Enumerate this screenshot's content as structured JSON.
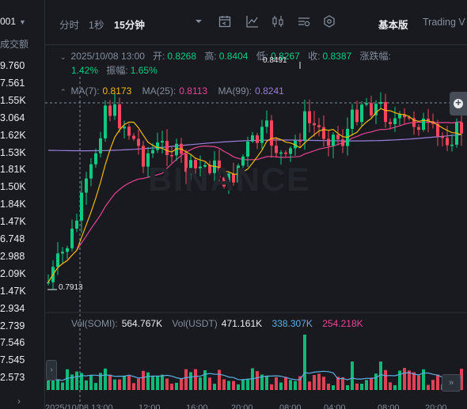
{
  "left_panel": {
    "header": "001",
    "subheader": "成交额",
    "values": [
      "9.760",
      "7.561",
      "1.55K",
      "3.064",
      "1.62K",
      "1.53K",
      "1.81K",
      "1.50K",
      "1.84K",
      "1.47K",
      "6.748",
      "2.988",
      "2.09K",
      "1.47K",
      "2.934",
      "2.739",
      "7.546",
      "7.545",
      "2.573"
    ]
  },
  "toolbar": {
    "time_label": "分时",
    "interval_1s": "1秒",
    "interval_15m": "15分钟",
    "basic_label": "基本版",
    "tradingview_label": "Trading V"
  },
  "ohlc": {
    "datetime": "2025/10/08 13:00",
    "open_label": "开:",
    "open": "0.8268",
    "high_label": "高:",
    "high": "0.8404",
    "low_label": "低:",
    "low": "0.8267",
    "close_label": "收:",
    "close": "0.8387",
    "change_label": "涨跌幅:",
    "change": "1.42%",
    "amplitude_label": "振幅:",
    "amplitude": "1.65%"
  },
  "ma": {
    "ma7_label": "MA(7):",
    "ma7": "0.8173",
    "ma25_label": "MA(25):",
    "ma25": "0.8113",
    "ma99_label": "MA(99):",
    "ma99": "0.8241"
  },
  "volume": {
    "label": "Vol(SOMI):",
    "somi": "564.767K",
    "usdt_label": "Vol(USDT)",
    "usdt": "471.161K",
    "ma_a": "338.307K",
    "ma_b": "254.218K"
  },
  "annotations": {
    "high_mark": "0.8491",
    "low_mark": "0.7913"
  },
  "x_axis": {
    "labels": [
      "2025/10/08 13:00",
      "12:00",
      "16:00",
      "20:00",
      "08:00",
      "04:00",
      "08:00",
      "20:00"
    ]
  },
  "watermark": "BINANCE",
  "colors": {
    "up": "#0ecb81",
    "down": "#f6465d",
    "ma7": "#f0b90b",
    "ma25": "#e84393",
    "ma99": "#9b7ede",
    "bg": "#181a20"
  }
}
